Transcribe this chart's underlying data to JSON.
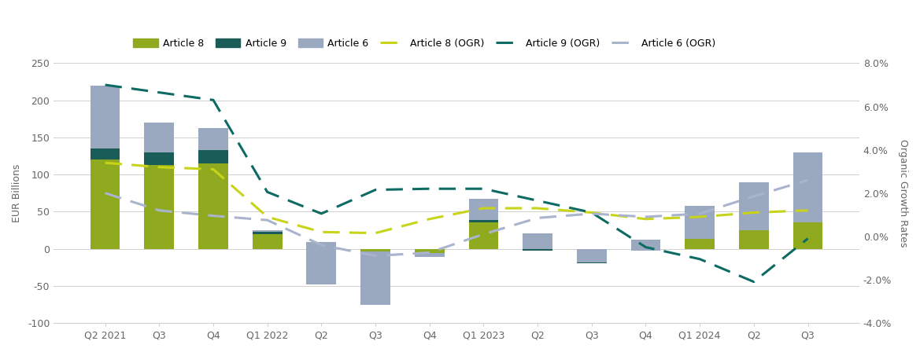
{
  "categories": [
    "Q2 2021",
    "Q3",
    "Q4",
    "Q1 2022",
    "Q2",
    "Q3",
    "Q4",
    "Q1 2023",
    "Q2",
    "Q3",
    "Q4",
    "Q1 2024",
    "Q2",
    "Q3"
  ],
  "art8_bars": [
    120,
    113,
    115,
    20,
    7,
    -5,
    -7,
    35,
    -3,
    -20,
    0,
    18,
    30,
    38
  ],
  "art9_bars": [
    15,
    17,
    18,
    3,
    2,
    1,
    1,
    4,
    2,
    2,
    -3,
    -5,
    -5,
    -3
  ],
  "art6_bars": [
    85,
    40,
    30,
    2,
    -57,
    -72,
    -5,
    28,
    22,
    18,
    15,
    45,
    65,
    95
  ],
  "art8_ogr": [
    3.4,
    3.2,
    3.1,
    0.9,
    0.2,
    0.15,
    0.8,
    1.3,
    1.3,
    1.1,
    0.8,
    0.9,
    1.1,
    1.2
  ],
  "art9_ogr": [
    7.0,
    6.65,
    6.3,
    2.05,
    1.05,
    2.15,
    2.2,
    2.2,
    1.65,
    1.1,
    -0.5,
    -1.05,
    -2.1,
    -0.1
  ],
  "art6_ogr": [
    2.0,
    1.2,
    0.95,
    0.75,
    -0.4,
    -0.9,
    -0.75,
    0.1,
    0.85,
    1.05,
    0.9,
    1.05,
    1.85,
    2.6
  ],
  "art8_color": "#8faa1e",
  "art9_color": "#1a5c58",
  "art6_color": "#9aa8c0",
  "art8_ogr_color": "#c8d41a",
  "art9_ogr_color": "#0d6b64",
  "art6_ogr_color": "#aab4cc",
  "ylim_left": [
    -100,
    250
  ],
  "ylim_right": [
    -4.0,
    8.0
  ],
  "ylabel_left": "EUR Billions",
  "ylabel_right": "Organic Growth Rates",
  "yticks_left": [
    -100,
    -50,
    0,
    50,
    100,
    150,
    200,
    250
  ],
  "yticks_right": [
    -4.0,
    -2.0,
    0.0,
    2.0,
    4.0,
    6.0,
    8.0
  ],
  "ytick_labels_left": [
    "-100",
    "-50",
    "0",
    "50",
    "100",
    "150",
    "200",
    "250"
  ],
  "ytick_labels_right": [
    "-4.0%",
    "-2.0%",
    "0.0%",
    "2.0%",
    "4.0%",
    "6.0%",
    "8.0%"
  ],
  "background_color": "#ffffff",
  "grid_color": "#d0d0d0"
}
